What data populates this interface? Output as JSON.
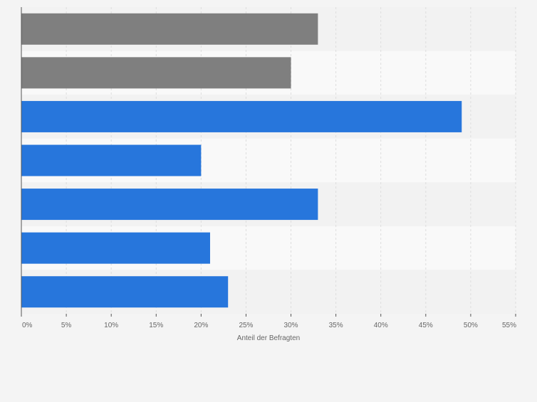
{
  "chart_data": {
    "type": "bar",
    "orientation": "horizontal",
    "values": [
      33,
      30,
      49,
      20,
      33,
      21,
      23
    ],
    "bar_colors": [
      "#7f7f7f",
      "#7f7f7f",
      "#2776dc",
      "#2776dc",
      "#2776dc",
      "#2776dc",
      "#2776dc"
    ],
    "xlabel": "Anteil der Befragten",
    "xlim": [
      0,
      55
    ],
    "x_ticks": [
      0,
      5,
      10,
      15,
      20,
      25,
      30,
      35,
      40,
      45,
      50,
      55
    ],
    "x_tick_labels": [
      "0%",
      "5%",
      "10%",
      "15%",
      "20%",
      "25%",
      "30%",
      "35%",
      "40%",
      "45%",
      "50%",
      "55%"
    ],
    "grid": true,
    "legend": "none"
  },
  "colors": {
    "page_background": "#f4f4f4",
    "band_light": "#f9f9f9",
    "band_dark": "#f2f2f2",
    "gridline": "#dddddd",
    "axis": "#555555",
    "tick_text": "#666666"
  }
}
